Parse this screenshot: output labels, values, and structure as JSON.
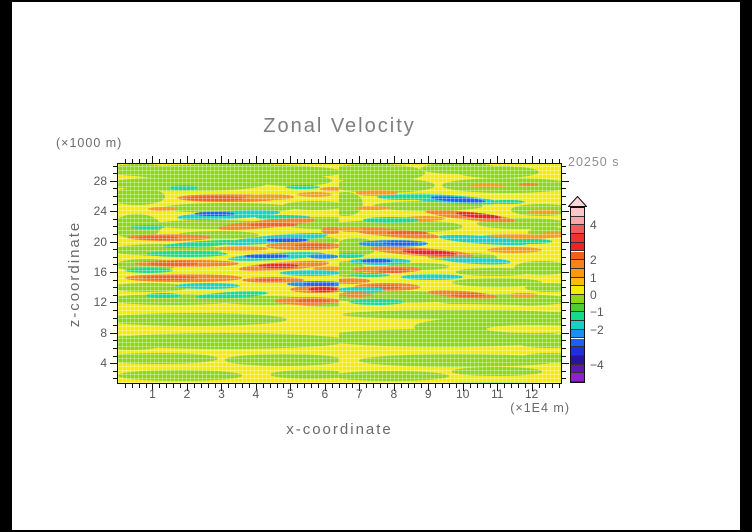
{
  "chart_data": {
    "type": "filled_contour",
    "title": "Zonal Velocity",
    "time_label": "20250 s",
    "xlabel": "x-coordinate",
    "x_axis_unit": "(×1E4 m)",
    "ylabel": "z-coordinate",
    "y_axis_unit": "(×1000 m)",
    "xlim": [
      0,
      12.85
    ],
    "zlim": [
      1.4,
      30.2
    ],
    "x_major_ticks": [
      1,
      2,
      3,
      4,
      5,
      6,
      7,
      8,
      9,
      10,
      11,
      12
    ],
    "x_minor_step": 0.2,
    "y_major_ticks": [
      4,
      8,
      12,
      16,
      20,
      24,
      28
    ],
    "y_minor_step": 1,
    "colorbar": {
      "tick_values": [
        4,
        2,
        1,
        0,
        -1,
        -2,
        -4
      ],
      "level_max": 5,
      "level_min": -5,
      "level_step": 0.5,
      "colors_top_to_bottom": [
        "#f9c6c9",
        "#f7a6ab",
        "#f5595c",
        "#f23030",
        "#ee2222",
        "#ef611c",
        "#f3831a",
        "#f79a10",
        "#fabb0e",
        "#f2ee00",
        "#8fd716",
        "#49cf2e",
        "#12db8d",
        "#16d2c4",
        "#1e8ff2",
        "#1d5ff5",
        "#1d2fe0",
        "#2a149e",
        "#5c17b8",
        "#8e20d2"
      ],
      "overflow_cap_color": "#fbd9db"
    },
    "field": {
      "background_value": 0.2,
      "seam_x": 6.42,
      "shape_format": [
        "x",
        "z",
        "rx",
        "rz",
        "value",
        "rotation_deg"
      ],
      "shapes": [
        [
          3.3,
          29.1,
          3.2,
          1.05,
          -0.3,
          0
        ],
        [
          0.6,
          29.4,
          0.9,
          0.8,
          -0.3,
          0
        ],
        [
          7.4,
          29.0,
          1.5,
          1.2,
          -0.3,
          0
        ],
        [
          9.9,
          29.6,
          1.1,
          0.7,
          -0.3,
          0
        ],
        [
          11.0,
          29.2,
          1.2,
          0.8,
          -0.3,
          0
        ],
        [
          2.0,
          27.6,
          2.3,
          0.95,
          -0.3,
          0
        ],
        [
          5.1,
          28.0,
          1.1,
          0.7,
          -0.3,
          0
        ],
        [
          7.7,
          27.4,
          1.5,
          1.0,
          -0.3,
          0
        ],
        [
          11.3,
          27.4,
          1.9,
          0.95,
          -0.3,
          0
        ],
        [
          0.55,
          25.9,
          0.8,
          1.1,
          -0.3,
          0
        ],
        [
          0.55,
          22.0,
          0.7,
          1.6,
          -0.3,
          0
        ],
        [
          3.2,
          24.4,
          1.9,
          0.7,
          -0.3,
          0
        ],
        [
          5.7,
          24.7,
          0.9,
          0.6,
          -0.3,
          0
        ],
        [
          9.0,
          24.7,
          1.6,
          0.65,
          -0.3,
          0
        ],
        [
          12.3,
          24.2,
          0.9,
          0.8,
          -0.3,
          0
        ],
        [
          6.6,
          24.9,
          0.5,
          1.6,
          -0.3,
          0
        ],
        [
          2.7,
          22.3,
          1.7,
          0.6,
          -0.3,
          0
        ],
        [
          5.9,
          22.4,
          1.2,
          0.8,
          -0.3,
          0
        ],
        [
          8.0,
          22.0,
          2.0,
          0.85,
          -0.3,
          0
        ],
        [
          11.7,
          22.4,
          1.3,
          0.7,
          -0.3,
          0
        ],
        [
          2.9,
          20.9,
          1.2,
          0.5,
          -0.3,
          0
        ],
        [
          5.6,
          20.1,
          0.8,
          0.6,
          -0.3,
          0
        ],
        [
          12.5,
          21.2,
          0.6,
          0.7,
          -0.3,
          0
        ],
        [
          1.4,
          18.9,
          1.6,
          0.75,
          -0.3,
          0
        ],
        [
          6.9,
          19.3,
          0.6,
          1.2,
          -0.3,
          0
        ],
        [
          10.0,
          18.0,
          1.0,
          0.5,
          -0.3,
          0
        ],
        [
          0.8,
          16.9,
          0.9,
          0.8,
          -0.3,
          0
        ],
        [
          6.65,
          16.4,
          0.5,
          1.0,
          -0.3,
          0
        ],
        [
          8.7,
          16.7,
          0.9,
          0.5,
          -0.3,
          0
        ],
        [
          12.3,
          16.5,
          0.8,
          0.9,
          -0.3,
          0
        ],
        [
          10.9,
          16.0,
          1.1,
          0.5,
          -0.3,
          0
        ],
        [
          0.9,
          14.0,
          1.1,
          0.6,
          -0.3,
          0
        ],
        [
          11.0,
          14.6,
          1.3,
          0.6,
          -0.3,
          0
        ],
        [
          12.5,
          14.0,
          0.7,
          0.6,
          -0.3,
          0
        ],
        [
          1.6,
          12.4,
          1.9,
          0.7,
          -0.3,
          0
        ],
        [
          4.3,
          12.3,
          1.4,
          0.6,
          -0.3,
          0
        ],
        [
          6.0,
          11.9,
          0.8,
          0.5,
          -0.3,
          0
        ],
        [
          8.1,
          12.7,
          2.0,
          0.8,
          -0.3,
          0
        ],
        [
          11.2,
          12.3,
          2.0,
          0.75,
          -0.3,
          0
        ],
        [
          2.2,
          9.7,
          2.7,
          0.85,
          -0.3,
          0
        ],
        [
          9.8,
          10.4,
          3.3,
          0.65,
          -0.3,
          0
        ],
        [
          12.6,
          10.1,
          0.8,
          0.6,
          -0.3,
          0
        ],
        [
          10.9,
          8.8,
          2.3,
          1.3,
          -0.3,
          0
        ],
        [
          3.1,
          6.9,
          3.6,
          1.05,
          -0.3,
          0
        ],
        [
          0.4,
          6.7,
          1.0,
          0.9,
          -0.3,
          0
        ],
        [
          9.4,
          7.3,
          3.6,
          1.15,
          -0.3,
          0
        ],
        [
          12.5,
          6.9,
          1.0,
          0.95,
          -0.3,
          0
        ],
        [
          1.2,
          4.6,
          1.7,
          0.75,
          -0.3,
          0
        ],
        [
          4.8,
          4.4,
          1.7,
          0.75,
          -0.3,
          0
        ],
        [
          9.9,
          4.4,
          2.9,
          0.85,
          -0.3,
          0
        ],
        [
          12.5,
          4.7,
          0.8,
          0.7,
          -0.3,
          0
        ],
        [
          1.8,
          2.4,
          1.8,
          0.7,
          -0.3,
          0
        ],
        [
          5.6,
          2.5,
          1.2,
          0.6,
          -0.3,
          0
        ],
        [
          7.9,
          2.3,
          1.7,
          0.7,
          -0.3,
          0
        ],
        [
          11.0,
          2.9,
          1.3,
          0.55,
          -0.3,
          0
        ],
        [
          2.9,
          0.9,
          1.6,
          0.45,
          -0.3,
          0
        ],
        [
          10.9,
          1.0,
          2.0,
          0.5,
          -0.3,
          0
        ],
        [
          12.1,
          8.5,
          1.4,
          0.5,
          0.2,
          0
        ],
        [
          3.0,
          11.2,
          3.0,
          0.45,
          0.2,
          0
        ],
        [
          9.5,
          11.35,
          2.8,
          0.4,
          0.2,
          0
        ],
        [
          1.9,
          27.1,
          0.4,
          0.28,
          -1.2,
          0
        ],
        [
          5.35,
          27.2,
          0.5,
          0.3,
          -1.3,
          0
        ],
        [
          0.85,
          21.9,
          0.5,
          0.3,
          -1.2,
          0
        ],
        [
          1.3,
          24.3,
          0.42,
          0.27,
          1.3,
          0
        ],
        [
          3.2,
          25.7,
          1.5,
          0.55,
          1.7,
          0
        ],
        [
          2.8,
          25.7,
          0.85,
          0.35,
          2.4,
          0
        ],
        [
          4.4,
          25.9,
          0.7,
          0.4,
          1.5,
          0
        ],
        [
          5.7,
          26.2,
          0.5,
          0.33,
          1.3,
          0
        ],
        [
          6.2,
          26.9,
          0.35,
          0.3,
          1.3,
          0
        ],
        [
          3.2,
          23.5,
          1.5,
          0.5,
          -1.7,
          -3
        ],
        [
          2.8,
          23.6,
          0.6,
          0.3,
          -2.5,
          0
        ],
        [
          4.8,
          23.2,
          0.8,
          0.35,
          -1.2,
          0
        ],
        [
          4.3,
          22.3,
          1.4,
          0.5,
          1.7,
          -5
        ],
        [
          4.5,
          22.2,
          0.7,
          0.3,
          2.2,
          0
        ],
        [
          6.2,
          21.4,
          0.3,
          0.45,
          1.9,
          0
        ],
        [
          1.5,
          20.5,
          1.2,
          0.45,
          1.7,
          0
        ],
        [
          1.15,
          20.5,
          0.6,
          0.28,
          2.2,
          0
        ],
        [
          4.6,
          20.3,
          1.5,
          0.5,
          -1.7,
          -5
        ],
        [
          4.9,
          20.2,
          0.6,
          0.3,
          -2.5,
          0
        ],
        [
          2.4,
          19.7,
          1.1,
          0.4,
          -1.2,
          -4
        ],
        [
          5.4,
          19.4,
          1.1,
          0.5,
          1.9,
          0
        ],
        [
          5.65,
          19.4,
          0.55,
          0.3,
          2.5,
          0
        ],
        [
          3.6,
          19.1,
          0.75,
          0.35,
          1.3,
          0
        ],
        [
          2.0,
          18.4,
          1.2,
          0.4,
          -1.3,
          0
        ],
        [
          4.6,
          18.1,
          1.4,
          0.45,
          -1.8,
          -3
        ],
        [
          4.3,
          18.1,
          0.65,
          0.28,
          -2.6,
          0
        ],
        [
          5.95,
          18.0,
          0.42,
          0.3,
          -2.3,
          0
        ],
        [
          2.0,
          17.1,
          1.5,
          0.5,
          1.7,
          0
        ],
        [
          1.6,
          17.1,
          0.7,
          0.3,
          2.1,
          0
        ],
        [
          4.8,
          16.8,
          1.3,
          0.5,
          1.9,
          -4
        ],
        [
          4.65,
          16.8,
          0.6,
          0.3,
          2.7,
          0
        ],
        [
          6.1,
          16.5,
          0.45,
          0.33,
          1.5,
          0
        ],
        [
          5.6,
          15.9,
          0.9,
          0.4,
          -1.5,
          0
        ],
        [
          0.9,
          16.2,
          0.7,
          0.33,
          -1.2,
          0
        ],
        [
          1.9,
          15.2,
          1.7,
          0.5,
          1.7,
          0
        ],
        [
          1.5,
          15.2,
          0.8,
          0.3,
          2.2,
          0
        ],
        [
          4.5,
          15.0,
          0.9,
          0.4,
          1.6,
          0
        ],
        [
          4.4,
          15.0,
          0.42,
          0.25,
          2.4,
          0
        ],
        [
          5.75,
          14.4,
          0.85,
          0.4,
          -2.0,
          0
        ],
        [
          5.85,
          14.4,
          0.45,
          0.25,
          -2.7,
          0
        ],
        [
          2.6,
          14.2,
          0.95,
          0.4,
          -1.5,
          0
        ],
        [
          5.8,
          13.7,
          0.8,
          0.45,
          1.9,
          0
        ],
        [
          5.95,
          13.7,
          0.4,
          0.27,
          2.6,
          0
        ],
        [
          3.3,
          13.0,
          1.05,
          0.4,
          -1.4,
          -3
        ],
        [
          1.3,
          12.9,
          0.5,
          0.3,
          -1.2,
          0
        ],
        [
          5.5,
          12.2,
          0.95,
          0.5,
          2.0,
          0
        ],
        [
          5.65,
          12.2,
          0.5,
          0.3,
          2.5,
          0
        ],
        [
          9.6,
          25.6,
          1.5,
          0.55,
          -1.8,
          4
        ],
        [
          9.85,
          25.5,
          0.8,
          0.33,
          -2.6,
          4
        ],
        [
          8.3,
          25.9,
          0.8,
          0.4,
          -1.2,
          0
        ],
        [
          11.3,
          25.2,
          0.5,
          0.3,
          -1.2,
          0
        ],
        [
          7.5,
          26.4,
          0.6,
          0.35,
          1.4,
          0
        ],
        [
          10.7,
          27.3,
          0.55,
          0.3,
          1.3,
          0
        ],
        [
          11.9,
          27.5,
          0.28,
          0.25,
          1.9,
          0
        ],
        [
          10.2,
          23.4,
          1.3,
          0.55,
          1.9,
          6
        ],
        [
          10.45,
          23.4,
          0.65,
          0.33,
          2.6,
          6
        ],
        [
          8.9,
          23.0,
          0.6,
          0.33,
          1.3,
          0
        ],
        [
          7.4,
          24.4,
          0.5,
          0.3,
          1.3,
          0
        ],
        [
          12.35,
          23.9,
          0.45,
          0.3,
          1.4,
          0
        ],
        [
          7.9,
          22.8,
          0.8,
          0.4,
          -1.3,
          0
        ],
        [
          8.0,
          21.2,
          1.3,
          0.5,
          1.8,
          5
        ],
        [
          8.4,
          21.1,
          0.6,
          0.3,
          2.3,
          0
        ],
        [
          11.5,
          20.6,
          1.0,
          0.45,
          1.5,
          0
        ],
        [
          12.65,
          20.9,
          0.4,
          0.3,
          1.2,
          0
        ],
        [
          6.75,
          21.6,
          0.35,
          0.3,
          1.4,
          0
        ],
        [
          10.6,
          20.2,
          1.3,
          0.5,
          -1.6,
          4
        ],
        [
          12.0,
          20.0,
          0.6,
          0.3,
          -1.2,
          0
        ],
        [
          8.0,
          19.8,
          1.0,
          0.45,
          -2.2,
          0
        ],
        [
          8.2,
          19.8,
          0.5,
          0.28,
          -2.8,
          0
        ],
        [
          8.8,
          18.6,
          1.5,
          0.55,
          1.9,
          4
        ],
        [
          9.05,
          18.6,
          0.8,
          0.33,
          2.7,
          4
        ],
        [
          11.5,
          18.9,
          0.8,
          0.4,
          1.4,
          0
        ],
        [
          6.7,
          18.15,
          0.45,
          0.3,
          -1.4,
          0
        ],
        [
          7.6,
          17.4,
          0.9,
          0.45,
          -1.9,
          0
        ],
        [
          7.5,
          17.4,
          0.45,
          0.28,
          -2.6,
          0
        ],
        [
          10.4,
          17.5,
          1.0,
          0.45,
          -1.6,
          3
        ],
        [
          7.8,
          16.3,
          1.0,
          0.45,
          1.7,
          0
        ],
        [
          8.0,
          16.2,
          0.45,
          0.28,
          2.4,
          0
        ],
        [
          9.1,
          15.3,
          0.9,
          0.4,
          -1.5,
          0
        ],
        [
          7.3,
          15.6,
          0.6,
          0.3,
          -1.2,
          0
        ],
        [
          6.75,
          14.85,
          0.55,
          0.38,
          1.8,
          0
        ],
        [
          7.8,
          14.05,
          0.95,
          0.5,
          1.9,
          0
        ],
        [
          7.7,
          14.05,
          0.5,
          0.3,
          2.4,
          0
        ],
        [
          7.05,
          13.6,
          0.7,
          0.38,
          -1.5,
          0
        ],
        [
          10.0,
          13.0,
          1.0,
          0.45,
          1.8,
          4
        ],
        [
          10.15,
          13.0,
          0.5,
          0.28,
          2.4,
          0
        ],
        [
          11.75,
          13.0,
          0.42,
          0.3,
          1.3,
          0
        ],
        [
          6.9,
          13.05,
          0.5,
          0.33,
          1.6,
          0
        ],
        [
          7.5,
          12.1,
          0.8,
          0.4,
          -1.3,
          0
        ]
      ]
    }
  }
}
